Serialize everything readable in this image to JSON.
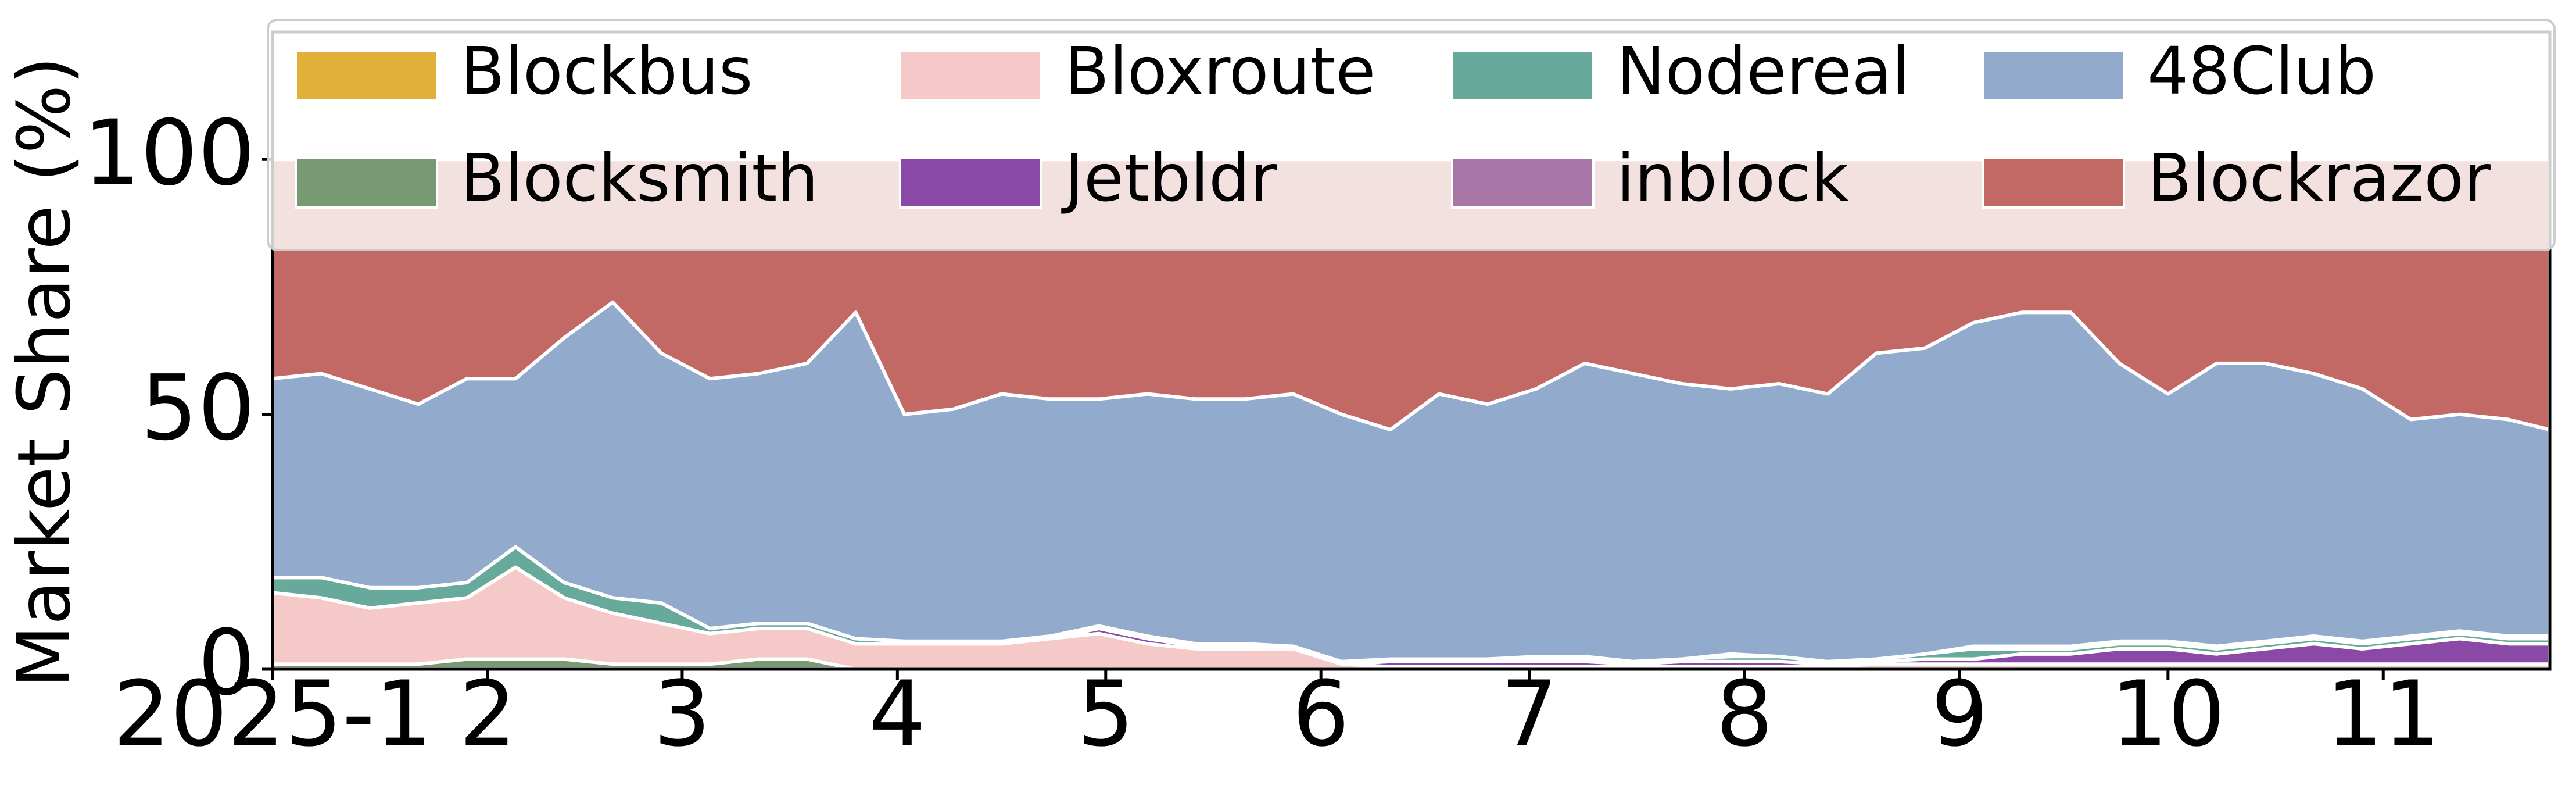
{
  "chart_data": {
    "type": "stacked_area",
    "y_label": "Market Share (%)",
    "legend": "upper center",
    "grid": false,
    "x": [
      "2025-01-01",
      "2025-01-08",
      "2025-01-15",
      "2025-01-22",
      "2025-01-29",
      "2025-02-05",
      "2025-02-12",
      "2025-02-19",
      "2025-02-26",
      "2025-03-05",
      "2025-03-12",
      "2025-03-19",
      "2025-03-26",
      "2025-04-02",
      "2025-04-09",
      "2025-04-16",
      "2025-04-23",
      "2025-04-30",
      "2025-05-07",
      "2025-05-14",
      "2025-05-21",
      "2025-05-28",
      "2025-06-04",
      "2025-06-11",
      "2025-06-18",
      "2025-06-25",
      "2025-07-02",
      "2025-07-09",
      "2025-07-16",
      "2025-07-23",
      "2025-07-30",
      "2025-08-06",
      "2025-08-13",
      "2025-08-20",
      "2025-08-27",
      "2025-09-03",
      "2025-09-10",
      "2025-09-17",
      "2025-09-24",
      "2025-10-01",
      "2025-10-08",
      "2025-10-15",
      "2025-10-22",
      "2025-10-29",
      "2025-11-05",
      "2025-11-12",
      "2025-11-19",
      "2025-11-25"
    ],
    "xlim": [
      "2025-01-01",
      "2025-11-25"
    ],
    "xticks": [
      {
        "value": "2025-01-01",
        "label": "2025-1"
      },
      {
        "value": "2025-02-01",
        "label": "2"
      },
      {
        "value": "2025-03-01",
        "label": "3"
      },
      {
        "value": "2025-04-01",
        "label": "4"
      },
      {
        "value": "2025-05-01",
        "label": "5"
      },
      {
        "value": "2025-06-01",
        "label": "6"
      },
      {
        "value": "2025-07-01",
        "label": "7"
      },
      {
        "value": "2025-08-01",
        "label": "8"
      },
      {
        "value": "2025-09-01",
        "label": "9"
      },
      {
        "value": "2025-10-01",
        "label": "10"
      },
      {
        "value": "2025-11-01",
        "label": "11"
      }
    ],
    "ylim": [
      0,
      125
    ],
    "yticks": [
      0,
      50,
      100
    ],
    "series": [
      {
        "name": "Blockbus",
        "color": "#e0b03a",
        "values": [
          0,
          0,
          0,
          0,
          0,
          0,
          0,
          0,
          0,
          0,
          0,
          0,
          0,
          0,
          0,
          0,
          0,
          0,
          0,
          0,
          0,
          0,
          0,
          0,
          0,
          0,
          0,
          0,
          0,
          0,
          0,
          0,
          0,
          0,
          0,
          0,
          0,
          0,
          0,
          0,
          0,
          0,
          0,
          0,
          0,
          0,
          0,
          0
        ]
      },
      {
        "name": "Blocksmith",
        "color": "#779a73",
        "values": [
          1,
          1,
          1,
          1,
          2,
          2,
          2,
          1,
          1,
          1,
          2,
          2,
          0,
          0,
          0,
          0,
          0,
          0,
          0,
          0,
          0,
          0,
          0,
          0,
          0,
          0,
          0,
          0,
          0,
          0,
          0,
          0,
          0,
          0,
          0,
          0,
          0,
          0,
          0,
          0,
          0,
          0,
          0,
          0,
          0,
          0,
          0,
          0
        ]
      },
      {
        "name": "Bloxroute",
        "color": "#f5c9c8",
        "values": [
          14,
          13,
          11,
          12,
          12,
          18,
          12,
          10,
          8,
          6,
          6,
          6,
          5,
          5,
          5,
          5,
          6,
          7,
          5,
          4,
          4,
          4,
          1,
          0.5,
          0.5,
          0.5,
          0.5,
          0.5,
          0.5,
          0.5,
          0.5,
          0.5,
          0.5,
          1,
          1,
          1,
          1,
          1,
          1,
          1,
          1,
          1,
          1,
          1,
          1,
          1,
          1,
          1
        ]
      },
      {
        "name": "Jetbldr",
        "color": "#8a49a6",
        "values": [
          0,
          0,
          0,
          0,
          0,
          0,
          0,
          0,
          0,
          0,
          0,
          0,
          0,
          0,
          0,
          0,
          0,
          1,
          1,
          0.5,
          0.5,
          0,
          0,
          1,
          1,
          1,
          1,
          1,
          0.5,
          1,
          1,
          1,
          0.5,
          0.5,
          1,
          1,
          2,
          2,
          3,
          3,
          2,
          3,
          4,
          3,
          4,
          5,
          4,
          4
        ]
      },
      {
        "name": "Nodereal",
        "color": "#67a99a",
        "values": [
          3,
          4,
          4,
          3,
          3,
          4,
          3,
          3,
          4,
          1,
          1,
          1,
          1,
          0.5,
          0.5,
          0.5,
          0.5,
          0.5,
          0.5,
          0.5,
          0.5,
          0.5,
          0.5,
          0.5,
          0.5,
          0.5,
          0.5,
          0.5,
          0.5,
          0.5,
          1,
          1,
          0.5,
          0.5,
          1,
          2,
          1,
          1,
          1,
          1,
          1,
          1,
          1,
          1,
          1,
          1,
          1,
          1
        ]
      },
      {
        "name": "inblock",
        "color": "#a877a7",
        "values": [
          0,
          0,
          0,
          0,
          0,
          0,
          0,
          0,
          0,
          0,
          0,
          0,
          0,
          0,
          0,
          0,
          0,
          0,
          0,
          0,
          0,
          0,
          0,
          0,
          0,
          0,
          0.5,
          0.5,
          0,
          0,
          0.5,
          0,
          0,
          0,
          0,
          0.5,
          0.5,
          0.5,
          0.5,
          0.5,
          0.5,
          0.5,
          0.5,
          0.5,
          0.5,
          0.5,
          0.5,
          0.5
        ]
      },
      {
        "name": "48Club",
        "color": "#92abcc",
        "values": [
          39,
          40,
          39,
          36,
          40,
          33,
          48,
          58,
          49,
          49,
          49,
          51,
          64,
          44.5,
          45.5,
          48.5,
          46.5,
          44.5,
          47.5,
          48,
          48,
          49.5,
          48.5,
          45,
          52,
          50,
          52.5,
          57.5,
          56.5,
          54,
          52,
          53.5,
          52.5,
          60,
          60,
          63.5,
          65.5,
          65.5,
          54.5,
          48.5,
          55.5,
          54.5,
          51.5,
          49.5,
          42.5,
          42.5,
          42.5,
          40.5
        ]
      },
      {
        "name": "Blockrazor",
        "color": "#c26966",
        "values": [
          43,
          42,
          45,
          48,
          43,
          43,
          35,
          28,
          38,
          43,
          42,
          40,
          30,
          50,
          49,
          46,
          47,
          47,
          46,
          47,
          47,
          46,
          50,
          53,
          46,
          48,
          45,
          40,
          42,
          44,
          45,
          44,
          46,
          38,
          37,
          32,
          30,
          30,
          40,
          46,
          40,
          40,
          42,
          45,
          51,
          50,
          51,
          53
        ]
      }
    ]
  }
}
